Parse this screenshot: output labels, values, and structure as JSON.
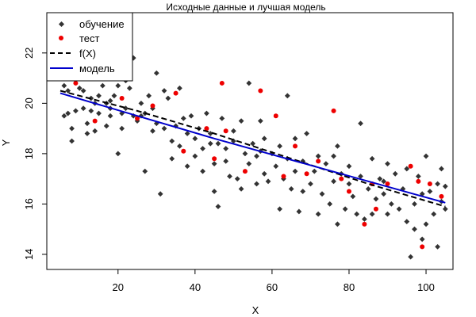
{
  "chart_data": {
    "type": "scatter",
    "title": "Исходные данные и лучшая модель",
    "xlabel": "X",
    "ylabel": "Y",
    "xlim": [
      1.5,
      107
    ],
    "ylim": [
      13.4,
      23.6
    ],
    "xticks": [
      20,
      40,
      60,
      80,
      100
    ],
    "yticks": [
      14,
      16,
      18,
      20,
      22
    ],
    "grid": false,
    "legend_position": "top-left",
    "legend": [
      {
        "label": "обучение",
        "kind": "point",
        "color": "#333333"
      },
      {
        "label": "тест",
        "kind": "point",
        "color": "#ee0000"
      },
      {
        "label": "f(X)",
        "kind": "dashed-line",
        "color": "#000000"
      },
      {
        "label": "модель",
        "kind": "line",
        "color": "#0000cc"
      }
    ],
    "series": [
      {
        "role": "train",
        "color": "#333333",
        "points": [
          [
            5,
            21.0
          ],
          [
            6,
            20.7
          ],
          [
            6,
            19.5
          ],
          [
            7,
            20.5
          ],
          [
            7,
            19.6
          ],
          [
            8,
            18.5
          ],
          [
            8,
            19.0
          ],
          [
            9,
            21.3
          ],
          [
            9,
            19.7
          ],
          [
            10,
            20.6
          ],
          [
            10,
            21.5
          ],
          [
            11,
            19.8
          ],
          [
            11,
            20.5
          ],
          [
            12,
            19.2
          ],
          [
            12,
            18.8
          ],
          [
            13,
            20.2
          ],
          [
            13,
            19.7
          ],
          [
            14,
            20.0
          ],
          [
            14,
            18.9
          ],
          [
            15,
            20.3
          ],
          [
            15,
            19.6
          ],
          [
            16,
            20.7
          ],
          [
            16,
            21.4
          ],
          [
            17,
            19.1
          ],
          [
            17,
            20.0
          ],
          [
            18,
            19.5
          ],
          [
            18,
            19.8
          ],
          [
            19,
            21.0
          ],
          [
            19,
            20.3
          ],
          [
            20,
            18.0
          ],
          [
            20,
            20.7
          ],
          [
            21,
            19.6
          ],
          [
            21,
            19.0
          ],
          [
            22,
            20.9
          ],
          [
            22,
            19.8
          ],
          [
            23,
            21.2
          ],
          [
            23,
            20.6
          ],
          [
            24,
            19.5
          ],
          [
            24,
            21.8
          ],
          [
            25,
            19.3
          ],
          [
            26,
            20.0
          ],
          [
            27,
            17.3
          ],
          [
            27,
            19.6
          ],
          [
            28,
            20.3
          ],
          [
            29,
            18.9
          ],
          [
            29,
            19.8
          ],
          [
            30,
            21.2
          ],
          [
            30,
            19.2
          ],
          [
            31,
            16.4
          ],
          [
            32,
            20.5
          ],
          [
            32,
            19.0
          ],
          [
            33,
            20.2
          ],
          [
            34,
            18.5
          ],
          [
            34,
            17.8
          ],
          [
            35,
            19.1
          ],
          [
            36,
            20.6
          ],
          [
            36,
            18.3
          ],
          [
            37,
            19.4
          ],
          [
            38,
            17.5
          ],
          [
            38,
            18.8
          ],
          [
            39,
            19.5
          ],
          [
            40,
            17.9
          ],
          [
            40,
            18.6
          ],
          [
            41,
            19.0
          ],
          [
            42,
            18.2
          ],
          [
            42,
            17.3
          ],
          [
            43,
            19.6
          ],
          [
            44,
            18.8
          ],
          [
            45,
            17.6
          ],
          [
            45,
            16.5
          ],
          [
            46,
            15.9
          ],
          [
            46,
            18.4
          ],
          [
            47,
            19.4
          ],
          [
            48,
            17.7
          ],
          [
            48,
            18.2
          ],
          [
            49,
            17.1
          ],
          [
            50,
            18.9
          ],
          [
            50,
            18.5
          ],
          [
            51,
            17.0
          ],
          [
            52,
            19.3
          ],
          [
            52,
            16.6
          ],
          [
            53,
            18.0
          ],
          [
            54,
            20.8
          ],
          [
            54,
            17.6
          ],
          [
            55,
            18.4
          ],
          [
            56,
            16.8
          ],
          [
            56,
            17.9
          ],
          [
            57,
            19.3
          ],
          [
            58,
            17.2
          ],
          [
            58,
            18.6
          ],
          [
            59,
            16.9
          ],
          [
            60,
            18.0
          ],
          [
            61,
            17.5
          ],
          [
            62,
            15.8
          ],
          [
            62,
            18.3
          ],
          [
            63,
            17.0
          ],
          [
            64,
            20.3
          ],
          [
            64,
            17.8
          ],
          [
            65,
            16.6
          ],
          [
            66,
            18.6
          ],
          [
            66,
            17.3
          ],
          [
            67,
            15.7
          ],
          [
            68,
            16.5
          ],
          [
            68,
            17.7
          ],
          [
            69,
            18.8
          ],
          [
            70,
            16.8
          ],
          [
            71,
            17.3
          ],
          [
            72,
            17.9
          ],
          [
            72,
            15.6
          ],
          [
            73,
            16.4
          ],
          [
            74,
            17.6
          ],
          [
            75,
            16.0
          ],
          [
            76,
            16.9
          ],
          [
            77,
            15.2
          ],
          [
            77,
            18.3
          ],
          [
            78,
            17.2
          ],
          [
            79,
            15.8
          ],
          [
            80,
            16.8
          ],
          [
            80,
            17.5
          ],
          [
            81,
            16.3
          ],
          [
            82,
            15.6
          ],
          [
            83,
            17.1
          ],
          [
            83,
            19.2
          ],
          [
            84,
            15.4
          ],
          [
            85,
            16.6
          ],
          [
            86,
            17.8
          ],
          [
            86,
            15.6
          ],
          [
            87,
            16.2
          ],
          [
            88,
            17.0
          ],
          [
            89,
            16.4
          ],
          [
            90,
            15.6
          ],
          [
            90,
            17.6
          ],
          [
            91,
            16.0
          ],
          [
            92,
            17.2
          ],
          [
            93,
            15.8
          ],
          [
            94,
            16.6
          ],
          [
            95,
            15.3
          ],
          [
            95,
            17.4
          ],
          [
            96,
            13.9
          ],
          [
            97,
            16.0
          ],
          [
            97,
            15.0
          ],
          [
            98,
            17.1
          ],
          [
            99,
            16.4
          ],
          [
            99,
            14.6
          ],
          [
            100,
            17.9
          ],
          [
            100,
            15.2
          ],
          [
            101,
            16.5
          ],
          [
            102,
            15.6
          ],
          [
            103,
            16.8
          ],
          [
            103,
            14.3
          ],
          [
            104,
            16.1
          ],
          [
            104,
            17.4
          ],
          [
            105,
            16.7
          ],
          [
            105,
            15.8
          ],
          [
            18,
            20.1
          ],
          [
            26,
            19.5
          ],
          [
            44,
            18.4
          ],
          [
            57,
            18.1
          ],
          [
            76,
            17.9
          ],
          [
            89,
            16.9
          ]
        ]
      },
      {
        "role": "test",
        "color": "#ee0000",
        "points": [
          [
            9,
            20.8
          ],
          [
            14,
            19.3
          ],
          [
            21,
            20.2
          ],
          [
            25,
            19.4
          ],
          [
            29,
            19.9
          ],
          [
            35,
            20.4
          ],
          [
            37,
            18.1
          ],
          [
            43,
            19.0
          ],
          [
            45,
            17.8
          ],
          [
            47,
            20.8
          ],
          [
            48,
            18.9
          ],
          [
            53,
            17.3
          ],
          [
            57,
            20.5
          ],
          [
            61,
            19.5
          ],
          [
            63,
            17.1
          ],
          [
            66,
            18.3
          ],
          [
            69,
            17.2
          ],
          [
            72,
            17.7
          ],
          [
            76,
            19.7
          ],
          [
            78,
            17.0
          ],
          [
            80,
            16.5
          ],
          [
            84,
            15.2
          ],
          [
            86,
            16.8
          ],
          [
            87,
            15.8
          ],
          [
            90,
            16.8
          ],
          [
            96,
            17.5
          ],
          [
            98,
            16.9
          ],
          [
            99,
            14.3
          ],
          [
            101,
            16.8
          ],
          [
            104,
            16.3
          ]
        ]
      },
      {
        "role": "f(X)",
        "color": "#000000",
        "dashed": true,
        "points": [
          [
            5,
            20.5
          ],
          [
            25,
            19.7
          ],
          [
            45,
            18.8
          ],
          [
            65,
            17.8
          ],
          [
            85,
            16.8
          ],
          [
            105,
            15.9
          ]
        ]
      },
      {
        "role": "model",
        "color": "#0000cc",
        "dashed": false,
        "points": [
          [
            5,
            20.4
          ],
          [
            25,
            19.5
          ],
          [
            45,
            18.6
          ],
          [
            65,
            17.75
          ],
          [
            85,
            16.9
          ],
          [
            105,
            16.05
          ]
        ]
      }
    ]
  }
}
